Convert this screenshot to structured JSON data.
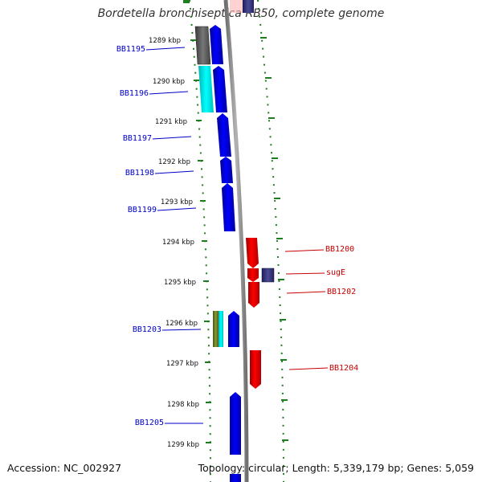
{
  "title": "Bordetella bronchiseptica RB50, complete genome",
  "footer": {
    "accession": "Accession: NC_002927",
    "summary": "Topology: circular; Length: 5,339,179 bp; Genes: 5,059"
  },
  "colors": {
    "forward_gene": "#0000e6",
    "reverse_gene": "#e60000",
    "backbone": "#8c8c8c",
    "tick": "#1e7d1e",
    "forward_label": "#0000c8",
    "reverse_label": "#c80000"
  },
  "ticks": [
    {
      "label": "1289 kbp"
    },
    {
      "label": "1290 kbp"
    },
    {
      "label": "1291 kbp"
    },
    {
      "label": "1292 kbp"
    },
    {
      "label": "1293 kbp"
    },
    {
      "label": "1294 kbp"
    },
    {
      "label": "1295 kbp"
    },
    {
      "label": "1296 kbp"
    },
    {
      "label": "1297 kbp"
    },
    {
      "label": "1298 kbp"
    },
    {
      "label": "1299 kbp"
    }
  ],
  "gene_labels": {
    "forward": [
      "BB1195",
      "BB1196",
      "BB1197",
      "BB1198",
      "BB1199",
      "BB1203",
      "BB1205"
    ],
    "reverse": [
      "BB1200",
      "sugE",
      "BB1202",
      "BB1204"
    ]
  }
}
